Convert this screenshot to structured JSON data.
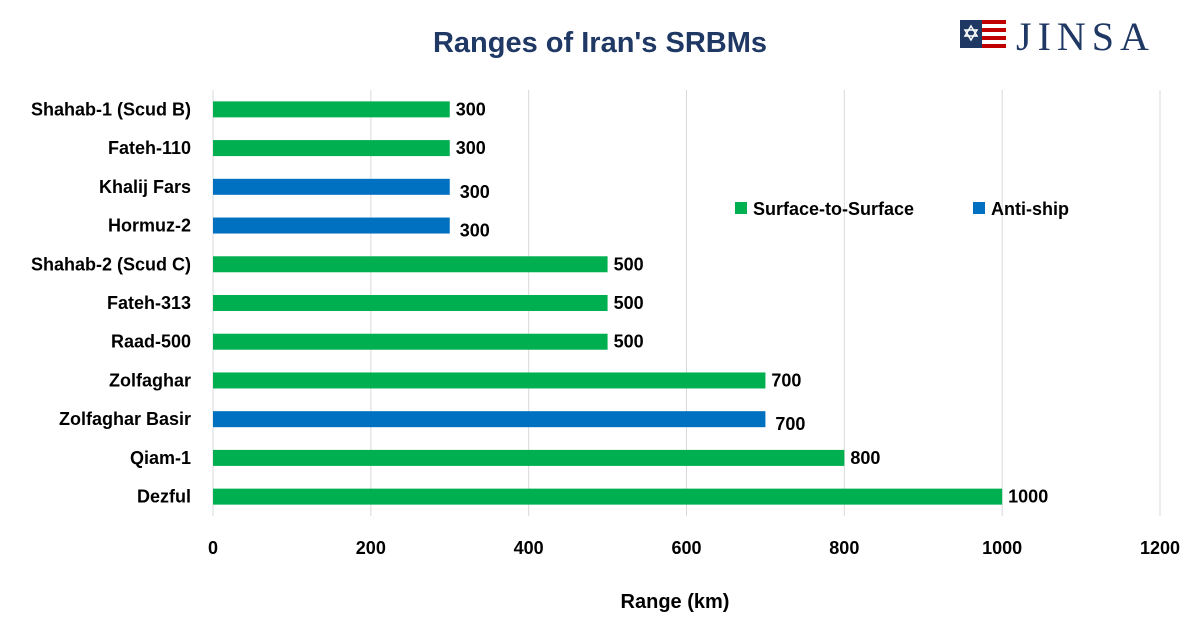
{
  "chart_data": {
    "type": "bar",
    "orientation": "horizontal",
    "title": "Ranges of Iran's SRBMs",
    "xlabel": "Range (km)",
    "ylabel": "",
    "xlim": [
      0,
      1200
    ],
    "xticks": [
      0,
      200,
      400,
      600,
      800,
      1000,
      1200
    ],
    "grid": true,
    "legend_position": "right",
    "categories": [
      "Shahab-1 (Scud B)",
      "Fateh-110",
      "Khalij Fars",
      "Hormuz-2",
      "Shahab-2 (Scud C)",
      "Fateh-313",
      "Raad-500",
      "Zolfaghar",
      "Zolfaghar Basir",
      "Qiam-1",
      "Dezful"
    ],
    "series": [
      {
        "name": "Surface-to-Surface",
        "color": "#00b050",
        "values": [
          300,
          300,
          null,
          null,
          500,
          500,
          500,
          700,
          null,
          800,
          1000
        ]
      },
      {
        "name": "Anti-ship",
        "color": "#0070c0",
        "values": [
          null,
          null,
          300,
          300,
          null,
          null,
          null,
          null,
          700,
          null,
          null
        ]
      }
    ],
    "data_labels": [
      "300",
      "300",
      "300",
      "300",
      "500",
      "500",
      "500",
      "700",
      "700",
      "800",
      "1000"
    ]
  },
  "logo": {
    "text": "JINSA"
  }
}
